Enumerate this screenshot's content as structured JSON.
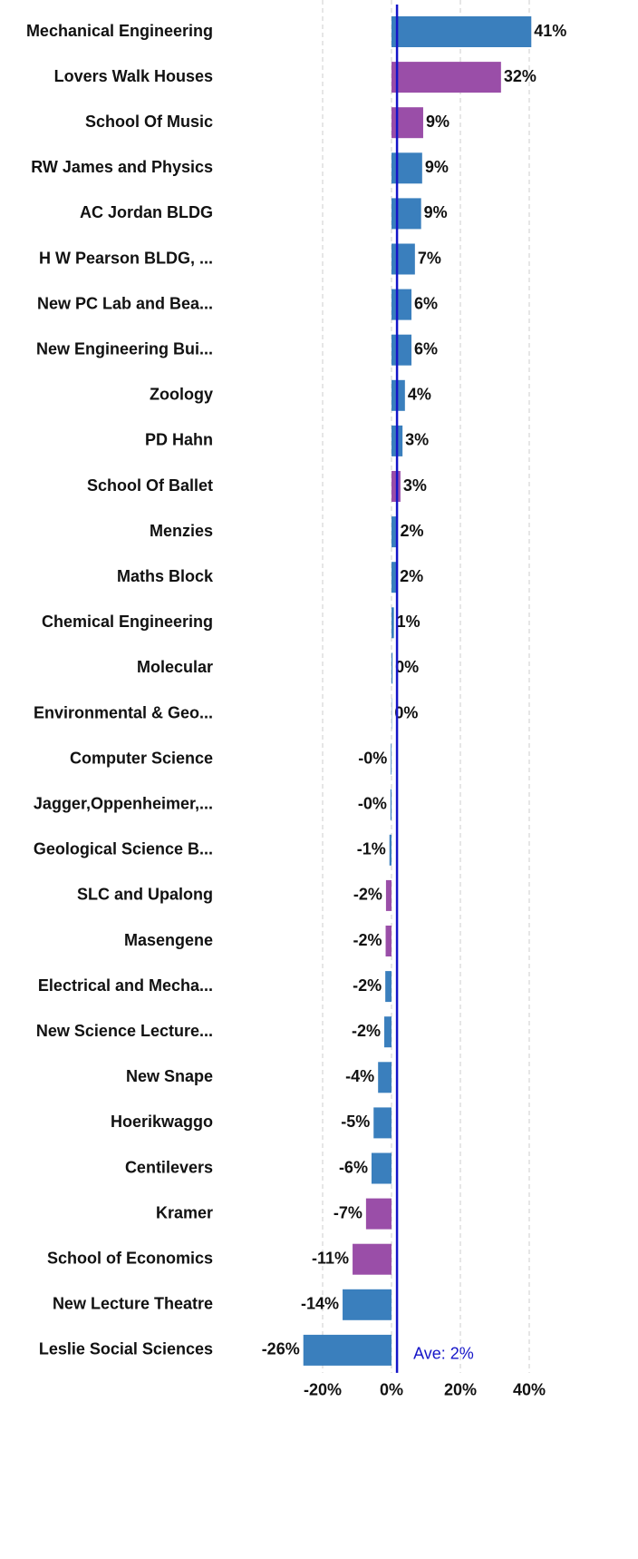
{
  "chart_data": {
    "type": "barh",
    "categories": [
      "Mechanical Engineering",
      "Lovers Walk Houses",
      "School Of Music",
      "RW James and Physics",
      "AC Jordan BLDG",
      "H W Pearson BLDG, ...",
      "New PC Lab and Bea...",
      "New Engineering Bui...",
      "Zoology",
      "PD Hahn",
      "School Of Ballet",
      "Menzies",
      "Maths Block",
      "Chemical Engineering",
      "Molecular",
      "Environmental & Geo...",
      "Computer Science",
      "Jagger,Oppenheimer,...",
      "Geological Science B...",
      "SLC and Upalong",
      "Masengene",
      "Electrical and Mecha...",
      "New Science Lecture...",
      "New Snape",
      "Hoerikwaggo",
      "Centilevers",
      "Kramer",
      "School of Economics",
      "New Lecture Theatre",
      "Leslie Social Sciences"
    ],
    "values": [
      40.6,
      31.8,
      9.2,
      8.9,
      8.6,
      6.8,
      5.8,
      5.8,
      3.9,
      3.2,
      2.6,
      1.7,
      1.6,
      0.7,
      0.3,
      0.1,
      -0.2,
      -0.3,
      -0.6,
      -1.6,
      -1.7,
      -1.8,
      -2.1,
      -3.9,
      -5.2,
      -5.8,
      -7.4,
      -11.3,
      -14.2,
      -25.6
    ],
    "value_labels": [
      "41%",
      "32%",
      "9%",
      "9%",
      "9%",
      "7%",
      "6%",
      "6%",
      "4%",
      "3%",
      "3%",
      "2%",
      "2%",
      "1%",
      "0%",
      "0%",
      "-0%",
      "-0%",
      "-1%",
      "-2%",
      "-2%",
      "-2%",
      "-2%",
      "-4%",
      "-5%",
      "-6%",
      "-7%",
      "-11%",
      "-14%",
      "-26%"
    ],
    "colors": [
      "#3a7fbd",
      "#9a4ea8",
      "#9a4ea8",
      "#3a7fbd",
      "#3a7fbd",
      "#3a7fbd",
      "#3a7fbd",
      "#3a7fbd",
      "#3a7fbd",
      "#3a7fbd",
      "#9a4ea8",
      "#3a7fbd",
      "#3a7fbd",
      "#3a7fbd",
      "#3a7fbd",
      "#3a7fbd",
      "#3a7fbd",
      "#3a7fbd",
      "#3a7fbd",
      "#9a4ea8",
      "#9a4ea8",
      "#3a7fbd",
      "#3a7fbd",
      "#3a7fbd",
      "#3a7fbd",
      "#3a7fbd",
      "#9a4ea8",
      "#9a4ea8",
      "#3a7fbd",
      "#3a7fbd"
    ],
    "xlim": [
      -28,
      46
    ],
    "xticks": [
      {
        "value": -20,
        "label": "-20%"
      },
      {
        "value": 0,
        "label": "0%"
      },
      {
        "value": 20,
        "label": "20%"
      },
      {
        "value": 40,
        "label": "40%"
      }
    ],
    "grid": true,
    "average": 1.6,
    "average_label": "Ave: 2%",
    "average_color": "#1515c8"
  }
}
